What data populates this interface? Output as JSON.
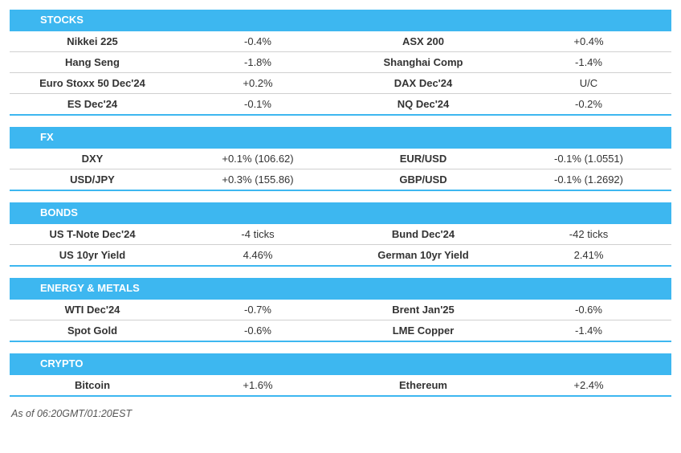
{
  "colors": {
    "header_bg": "#3db7f0",
    "header_text": "#ffffff",
    "row_border": "#d0d0d0",
    "section_end_border": "#3db7f0",
    "text": "#333333",
    "footnote": "#555555",
    "background": "#ffffff"
  },
  "typography": {
    "header_fontsize": 13,
    "cell_fontsize": 13,
    "footnote_fontsize": 12.5,
    "font_family": "Arial"
  },
  "sections": [
    {
      "title": "STOCKS",
      "rows": [
        {
          "l_name": "Nikkei 225",
          "l_val": "-0.4%",
          "r_name": "ASX 200",
          "r_val": "+0.4%"
        },
        {
          "l_name": "Hang Seng",
          "l_val": "-1.8%",
          "r_name": "Shanghai Comp",
          "r_val": "-1.4%"
        },
        {
          "l_name": "Euro Stoxx 50 Dec'24",
          "l_val": "+0.2%",
          "r_name": "DAX Dec'24",
          "r_val": "U/C"
        },
        {
          "l_name": "ES Dec'24",
          "l_val": "-0.1%",
          "r_name": "NQ Dec'24",
          "r_val": "-0.2%"
        }
      ]
    },
    {
      "title": "FX",
      "rows": [
        {
          "l_name": "DXY",
          "l_val": "+0.1% (106.62)",
          "r_name": "EUR/USD",
          "r_val": "-0.1% (1.0551)"
        },
        {
          "l_name": "USD/JPY",
          "l_val": "+0.3% (155.86)",
          "r_name": "GBP/USD",
          "r_val": "-0.1% (1.2692)"
        }
      ]
    },
    {
      "title": "BONDS",
      "rows": [
        {
          "l_name": "US T-Note Dec'24",
          "l_val": "-4 ticks",
          "r_name": "Bund Dec'24",
          "r_val": "-42 ticks"
        },
        {
          "l_name": "US 10yr Yield",
          "l_val": "4.46%",
          "r_name": "German 10yr Yield",
          "r_val": "2.41%"
        }
      ]
    },
    {
      "title": "ENERGY & METALS",
      "rows": [
        {
          "l_name": "WTI Dec'24",
          "l_val": "-0.7%",
          "r_name": "Brent Jan'25",
          "r_val": "-0.6%"
        },
        {
          "l_name": "Spot Gold",
          "l_val": "-0.6%",
          "r_name": "LME Copper",
          "r_val": "-1.4%"
        }
      ]
    },
    {
      "title": "CRYPTO",
      "rows": [
        {
          "l_name": "Bitcoin",
          "l_val": "+1.6%",
          "r_name": "Ethereum",
          "r_val": "+2.4%"
        }
      ]
    }
  ],
  "footnote": "As of 06:20GMT/01:20EST"
}
